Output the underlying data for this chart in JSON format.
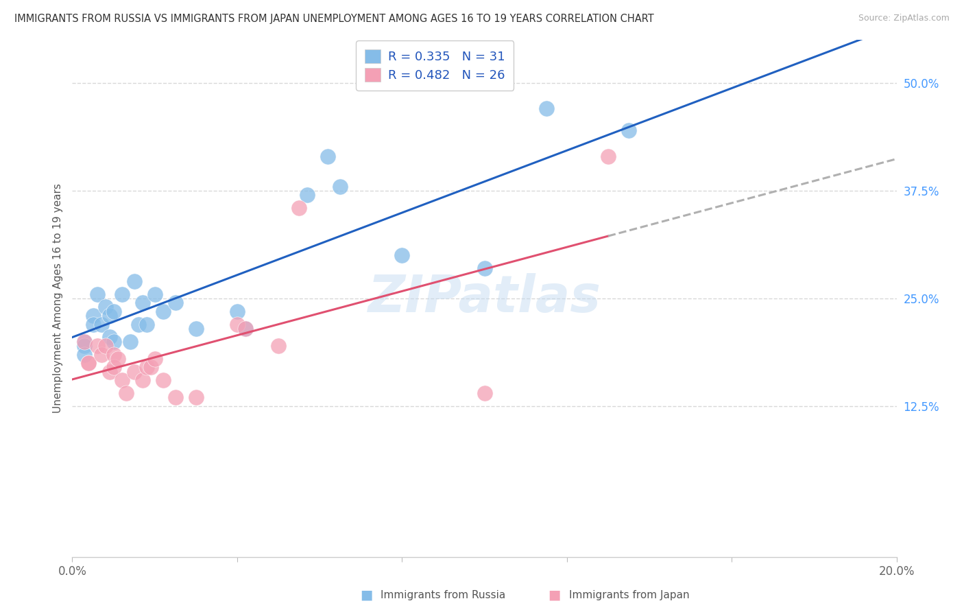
{
  "title": "IMMIGRANTS FROM RUSSIA VS IMMIGRANTS FROM JAPAN UNEMPLOYMENT AMONG AGES 16 TO 19 YEARS CORRELATION CHART",
  "source": "Source: ZipAtlas.com",
  "ylabel": "Unemployment Among Ages 16 to 19 years",
  "xlim": [
    0.0,
    0.2
  ],
  "ylim": [
    -0.05,
    0.55
  ],
  "xtick_positions": [
    0.0,
    0.04,
    0.08,
    0.12,
    0.16,
    0.2
  ],
  "xticklabels": [
    "0.0%",
    "",
    "",
    "",
    "",
    "20.0%"
  ],
  "right_ytick_positions": [
    0.125,
    0.25,
    0.375,
    0.5
  ],
  "right_yticklabels": [
    "12.5%",
    "25.0%",
    "37.5%",
    "50.0%"
  ],
  "russia_color": "#85bce8",
  "japan_color": "#f4a0b5",
  "russia_line_color": "#2060c0",
  "japan_line_color": "#e05070",
  "dashed_line_color": "#b0b0b0",
  "legend_russia_R": "0.335",
  "legend_russia_N": "31",
  "legend_japan_R": "0.482",
  "legend_japan_N": "26",
  "watermark": "ZIPatlas",
  "russia_x": [
    0.003,
    0.003,
    0.003,
    0.005,
    0.005,
    0.006,
    0.007,
    0.008,
    0.009,
    0.009,
    0.01,
    0.01,
    0.012,
    0.014,
    0.015,
    0.016,
    0.017,
    0.018,
    0.02,
    0.022,
    0.025,
    0.03,
    0.04,
    0.042,
    0.057,
    0.062,
    0.065,
    0.08,
    0.1,
    0.115,
    0.135
  ],
  "russia_y": [
    0.2,
    0.195,
    0.185,
    0.23,
    0.22,
    0.255,
    0.22,
    0.24,
    0.23,
    0.205,
    0.2,
    0.235,
    0.255,
    0.2,
    0.27,
    0.22,
    0.245,
    0.22,
    0.255,
    0.235,
    0.245,
    0.215,
    0.235,
    0.215,
    0.37,
    0.415,
    0.38,
    0.3,
    0.285,
    0.47,
    0.445
  ],
  "japan_x": [
    0.003,
    0.004,
    0.004,
    0.006,
    0.007,
    0.008,
    0.009,
    0.01,
    0.01,
    0.011,
    0.012,
    0.013,
    0.015,
    0.017,
    0.018,
    0.019,
    0.02,
    0.022,
    0.025,
    0.03,
    0.04,
    0.042,
    0.05,
    0.055,
    0.1,
    0.13
  ],
  "japan_y": [
    0.2,
    0.175,
    0.175,
    0.195,
    0.185,
    0.195,
    0.165,
    0.185,
    0.17,
    0.18,
    0.155,
    0.14,
    0.165,
    0.155,
    0.17,
    0.17,
    0.18,
    0.155,
    0.135,
    0.135,
    0.22,
    0.215,
    0.195,
    0.355,
    0.14,
    0.415
  ],
  "bottom_legend_russia": "Immigrants from Russia",
  "bottom_legend_japan": "Immigrants from Japan",
  "background_color": "#ffffff",
  "grid_color": "#d8d8d8"
}
